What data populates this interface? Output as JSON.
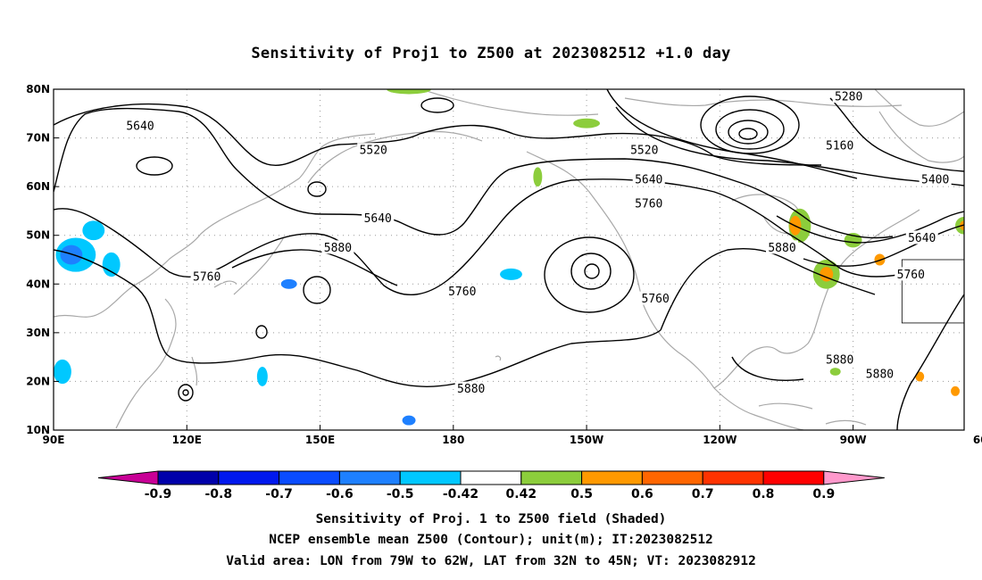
{
  "title": "Sensitivity of Proj1 to Z500 at 2023082512 +1.0 day",
  "map": {
    "lon_range": [
      90,
      295
    ],
    "lat_range": [
      10,
      80
    ],
    "lat_ticks": [
      {
        "lat": 80,
        "label": "80N"
      },
      {
        "lat": 70,
        "label": "70N"
      },
      {
        "lat": 60,
        "label": "60N"
      },
      {
        "lat": 50,
        "label": "50N"
      },
      {
        "lat": 40,
        "label": "40N"
      },
      {
        "lat": 30,
        "label": "30N"
      },
      {
        "lat": 20,
        "label": "20N"
      },
      {
        "lat": 10,
        "label": "10N"
      }
    ],
    "lon_ticks": [
      {
        "lon": 90,
        "label": "90E"
      },
      {
        "lon": 120,
        "label": "120E"
      },
      {
        "lon": 150,
        "label": "150E"
      },
      {
        "lon": 180,
        "label": "180"
      },
      {
        "lon": 210,
        "label": "150W"
      },
      {
        "lon": 240,
        "label": "120W"
      },
      {
        "lon": 270,
        "label": "90W"
      },
      {
        "lon": 300,
        "label": "60W"
      }
    ],
    "grid": "dotted",
    "valid_box": {
      "lon": [
        281,
        298
      ],
      "lat": [
        32,
        45
      ]
    }
  },
  "contour_labels": [
    {
      "text": "5640",
      "lon": 109.5,
      "lat": 72.5
    },
    {
      "text": "5520",
      "lon": 162,
      "lat": 67.5
    },
    {
      "text": "5640",
      "lon": 163,
      "lat": 53.5
    },
    {
      "text": "5880",
      "lon": 154,
      "lat": 47.5
    },
    {
      "text": "5760",
      "lon": 124.5,
      "lat": 41.5
    },
    {
      "text": "5760",
      "lon": 182,
      "lat": 38.5
    },
    {
      "text": "5520",
      "lon": 223,
      "lat": 67.5
    },
    {
      "text": "5640",
      "lon": 224,
      "lat": 61.5
    },
    {
      "text": "5760",
      "lon": 224,
      "lat": 56.5
    },
    {
      "text": "5760",
      "lon": 225.5,
      "lat": 37
    },
    {
      "text": "5880",
      "lon": 184,
      "lat": 18.5
    },
    {
      "text": "5880",
      "lon": 254,
      "lat": 47.5
    },
    {
      "text": "5280",
      "lon": 269,
      "lat": 78.5
    },
    {
      "text": "5160",
      "lon": 267,
      "lat": 68.5
    },
    {
      "text": "5400",
      "lon": 288.5,
      "lat": 61.5
    },
    {
      "text": "5640",
      "lon": 285.5,
      "lat": 49.5
    },
    {
      "text": "5760",
      "lon": 283,
      "lat": 42
    },
    {
      "text": "5880",
      "lon": 267,
      "lat": 24.5
    },
    {
      "text": "5880",
      "lon": 276,
      "lat": 21.5
    }
  ],
  "colorbar": {
    "labels": [
      "-0.9",
      "-0.8",
      "-0.7",
      "-0.6",
      "-0.5",
      "-0.42",
      "0.42",
      "0.5",
      "0.6",
      "0.7",
      "0.8",
      "0.9"
    ],
    "colors": [
      "#0000aa",
      "#0018ee",
      "#0a4cff",
      "#1e80ff",
      "#00c8ff",
      "#ffffff",
      "#8ccd3c",
      "#ff9900",
      "#ff6600",
      "#ff3300",
      "#ff0000"
    ],
    "low_extend_color": "#c80096",
    "high_extend_color": "#ff99cc"
  },
  "shading": [
    {
      "lon": 95,
      "lat": 46,
      "rx": 4.5,
      "ry": 3.5,
      "color": "#00c8ff"
    },
    {
      "lon": 94,
      "lat": 46,
      "rx": 2.5,
      "ry": 2,
      "color": "#1e80ff"
    },
    {
      "lon": 99,
      "lat": 51,
      "rx": 2.5,
      "ry": 2,
      "color": "#00c8ff"
    },
    {
      "lon": 103,
      "lat": 44,
      "rx": 2,
      "ry": 2.5,
      "color": "#00c8ff"
    },
    {
      "lon": 92,
      "lat": 22,
      "rx": 2,
      "ry": 2.5,
      "color": "#00c8ff"
    },
    {
      "lon": 143,
      "lat": 40,
      "rx": 1.8,
      "ry": 1,
      "color": "#1e80ff"
    },
    {
      "lon": 137,
      "lat": 21,
      "rx": 1.2,
      "ry": 2,
      "color": "#00c8ff"
    },
    {
      "lon": 170,
      "lat": 12,
      "rx": 1.5,
      "ry": 1,
      "color": "#1e80ff"
    },
    {
      "lon": 193,
      "lat": 42,
      "rx": 2.5,
      "ry": 1.2,
      "color": "#00c8ff"
    },
    {
      "lon": 170,
      "lat": 80,
      "rx": 5,
      "ry": 1,
      "color": "#8ccd3c"
    },
    {
      "lon": 210,
      "lat": 73,
      "rx": 3,
      "ry": 1,
      "color": "#8ccd3c"
    },
    {
      "lon": 199,
      "lat": 62,
      "rx": 1,
      "ry": 2,
      "color": "#8ccd3c"
    },
    {
      "lon": 258,
      "lat": 52,
      "rx": 2.5,
      "ry": 3.5,
      "color": "#8ccd3c"
    },
    {
      "lon": 257,
      "lat": 52,
      "rx": 1.3,
      "ry": 2,
      "color": "#ff9900"
    },
    {
      "lon": 264,
      "lat": 42,
      "rx": 3,
      "ry": 3,
      "color": "#8ccd3c"
    },
    {
      "lon": 264,
      "lat": 42,
      "rx": 1.5,
      "ry": 1.5,
      "color": "#ff9900"
    },
    {
      "lon": 270,
      "lat": 49,
      "rx": 2,
      "ry": 1.5,
      "color": "#8ccd3c"
    },
    {
      "lon": 276,
      "lat": 45,
      "rx": 1.2,
      "ry": 1.2,
      "color": "#ff9900"
    },
    {
      "lon": 295,
      "lat": 52,
      "rx": 2,
      "ry": 1.8,
      "color": "#8ccd3c"
    },
    {
      "lon": 295,
      "lat": 52,
      "rx": 1,
      "ry": 1,
      "color": "#ff9900"
    },
    {
      "lon": 266,
      "lat": 22,
      "rx": 1.2,
      "ry": 0.8,
      "color": "#8ccd3c"
    },
    {
      "lon": 285,
      "lat": 21,
      "rx": 1,
      "ry": 1,
      "color": "#ff9900"
    },
    {
      "lon": 293,
      "lat": 18,
      "rx": 1,
      "ry": 1,
      "color": "#ff9900"
    }
  ],
  "captions": [
    "Sensitivity of Proj. 1 to Z500 field (Shaded)",
    "NCEP ensemble mean Z500 (Contour); unit(m); IT:2023082512",
    "Valid area: LON from 79W to 62W, LAT from 32N to 45N; VT: 2023082912"
  ]
}
